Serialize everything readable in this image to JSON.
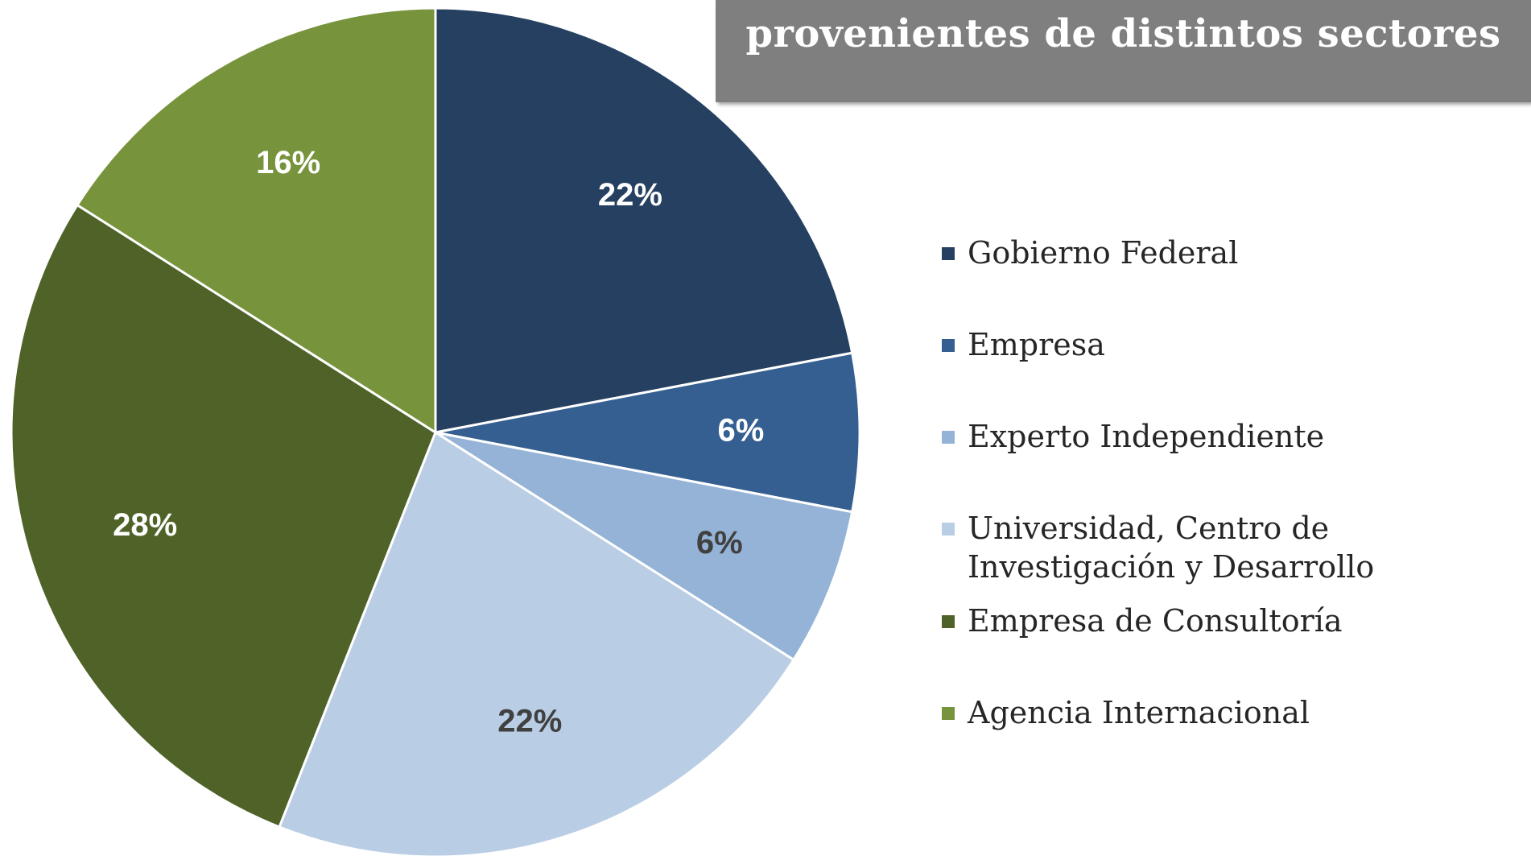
{
  "chart_data": {
    "type": "pie",
    "title": "provenientes de distintos sectores",
    "categories": [
      "Gobierno Federal",
      "Empresa",
      "Experto Independiente",
      "Universidad, Centro de Investigación y Desarrollo",
      "Empresa de Consultoría",
      "Agencia Internacional"
    ],
    "values": [
      22,
      6,
      6,
      22,
      28,
      16
    ],
    "value_labels": [
      "22%",
      "6%",
      "6%",
      "22%",
      "28%",
      "16%"
    ],
    "colors": [
      "#264061",
      "#355f91",
      "#95b3d7",
      "#b9cde5",
      "#4f6228",
      "#77933c"
    ],
    "legend": "right"
  }
}
